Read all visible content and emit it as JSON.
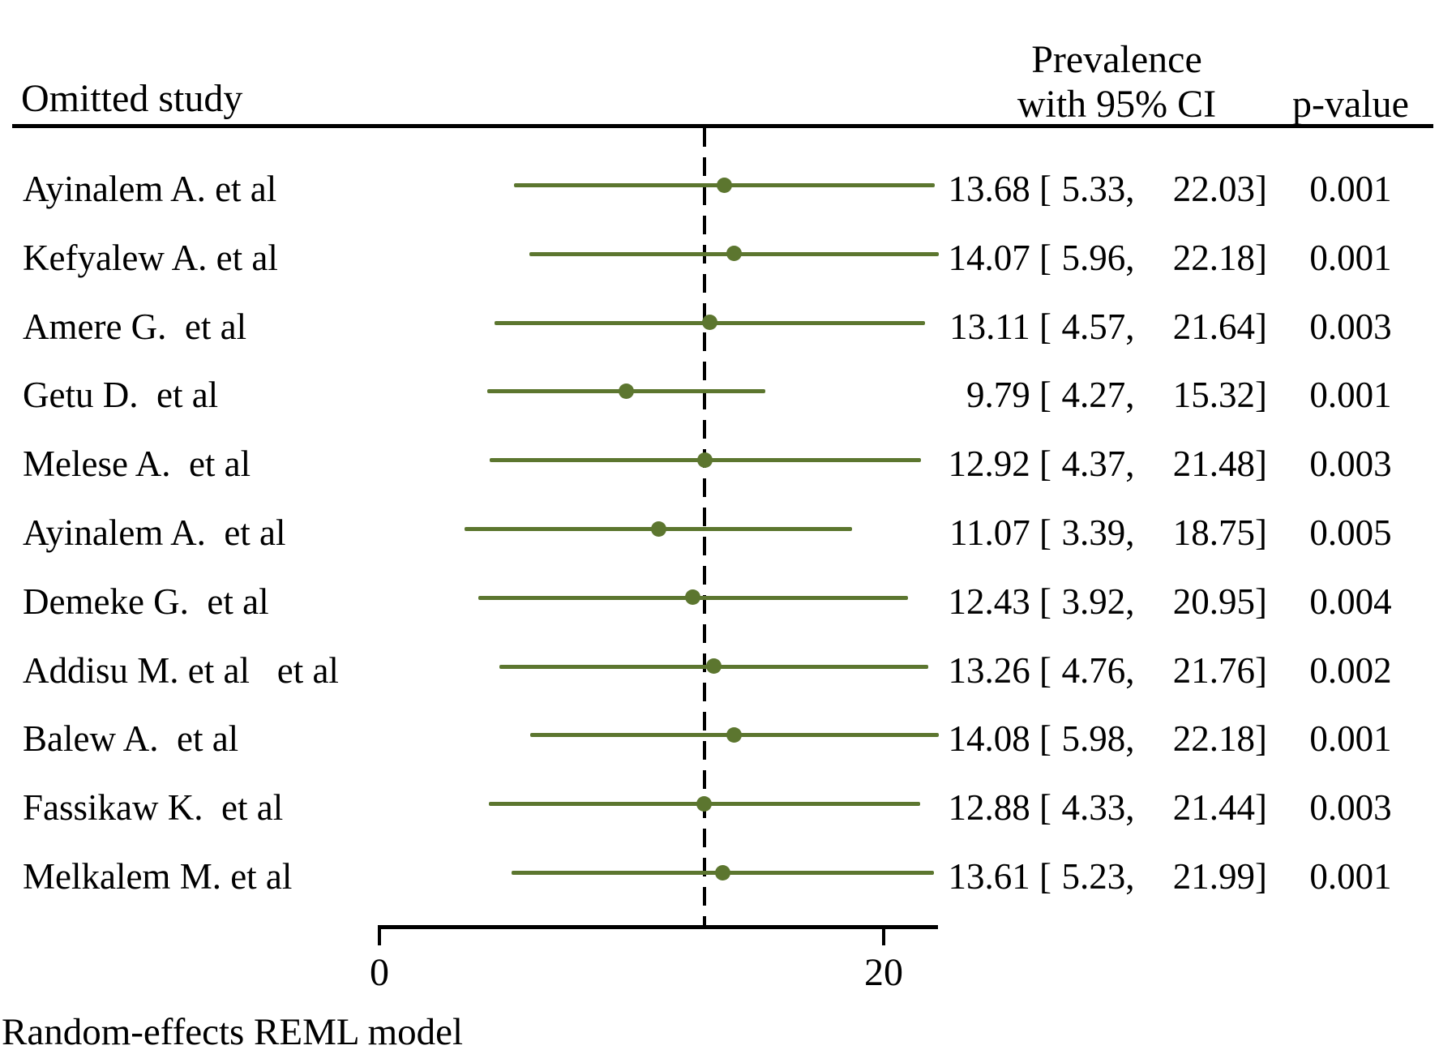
{
  "header": {
    "omitted_study": "Omitted study",
    "effect_line1": "Prevalence",
    "effect_line2": "with 95% CI",
    "p_value": "p-value"
  },
  "footnote": "Random-effects REML model",
  "chart_data": {
    "type": "forest",
    "title": "Leave-one-out sensitivity analysis forest plot",
    "x_axis": {
      "range": [
        0,
        22.2
      ],
      "ticks": [
        0,
        20
      ],
      "grid": false
    },
    "reference_line_value": 12.9,
    "marker_color": "#5c762f",
    "reference_line_color": "#000000",
    "columns": [
      "Omitted study",
      "Prevalence with 95% CI",
      "p-value"
    ],
    "studies": [
      {
        "label": "Ayinalem A. et al",
        "est": 13.68,
        "lo": 5.33,
        "hi": 22.03,
        "p": "0.001"
      },
      {
        "label": "Kefyalew A. et al",
        "est": 14.07,
        "lo": 5.96,
        "hi": 22.18,
        "p": "0.001"
      },
      {
        "label": "Amere G.  et al",
        "est": 13.11,
        "lo": 4.57,
        "hi": 21.64,
        "p": "0.003"
      },
      {
        "label": "Getu D.  et al",
        "est": 9.79,
        "lo": 4.27,
        "hi": 15.32,
        "p": "0.001"
      },
      {
        "label": "Melese A.  et al",
        "est": 12.92,
        "lo": 4.37,
        "hi": 21.48,
        "p": "0.003"
      },
      {
        "label": "Ayinalem A.  et al",
        "est": 11.07,
        "lo": 3.39,
        "hi": 18.75,
        "p": "0.005"
      },
      {
        "label": "Demeke G.  et al",
        "est": 12.43,
        "lo": 3.92,
        "hi": 20.95,
        "p": "0.004"
      },
      {
        "label": "Addisu M. et al   et al",
        "est": 13.26,
        "lo": 4.76,
        "hi": 21.76,
        "p": "0.002"
      },
      {
        "label": "Balew A.  et al",
        "est": 14.08,
        "lo": 5.98,
        "hi": 22.18,
        "p": "0.001"
      },
      {
        "label": "Fassikaw K.  et al",
        "est": 12.88,
        "lo": 4.33,
        "hi": 21.44,
        "p": "0.003"
      },
      {
        "label": "Melkalem M. et al",
        "est": 13.61,
        "lo": 5.23,
        "hi": 21.99,
        "p": "0.001"
      }
    ]
  }
}
